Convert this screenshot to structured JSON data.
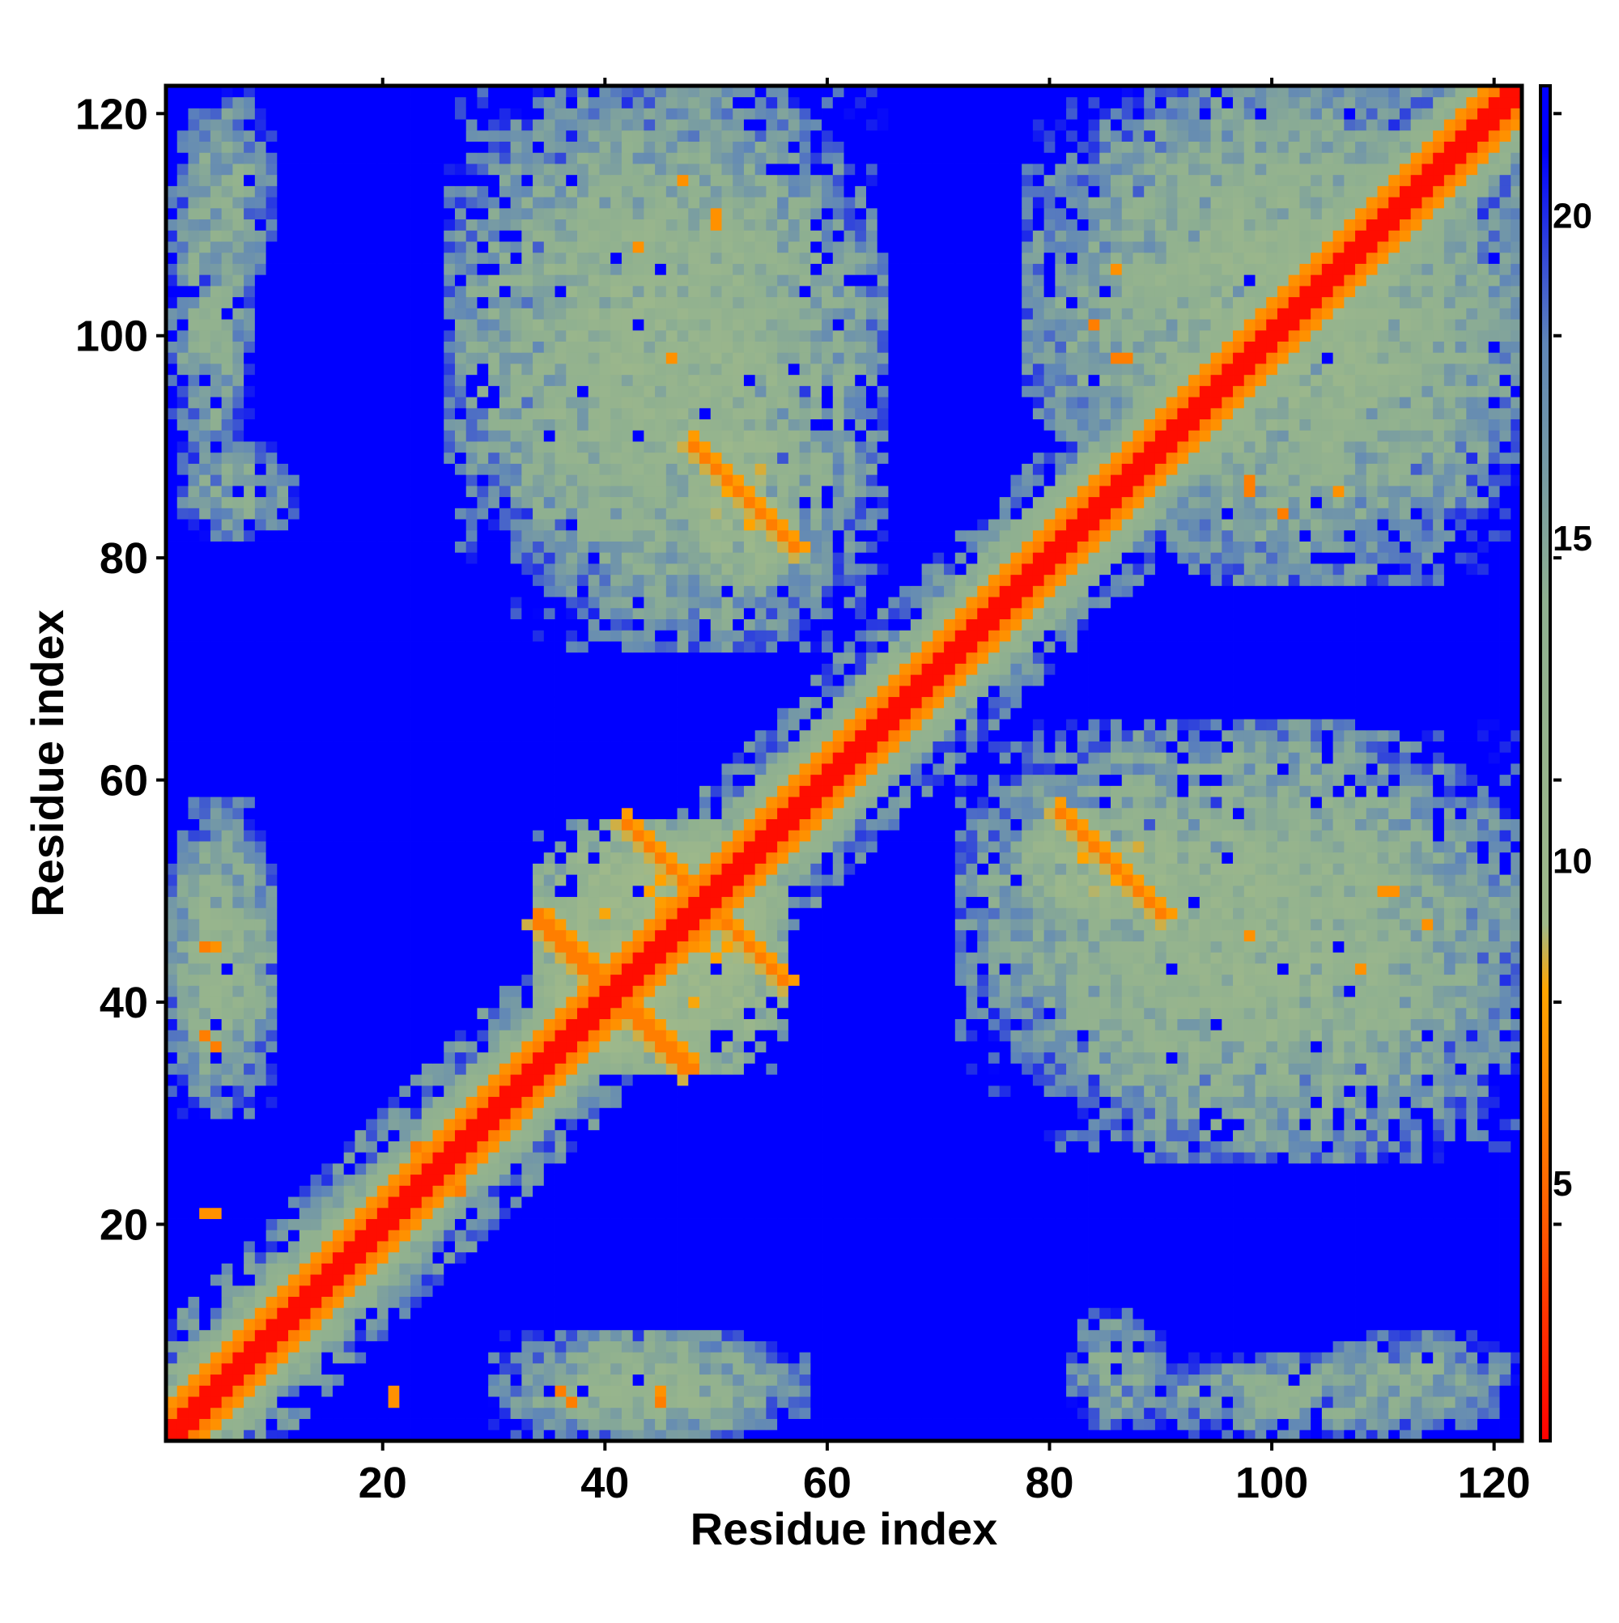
{
  "chart_data": {
    "type": "heatmap",
    "title": "",
    "xlabel": "Residue index",
    "ylabel": "Residue index",
    "xlim": [
      1,
      122
    ],
    "ylim": [
      1,
      122
    ],
    "x_ticks": [
      20,
      40,
      60,
      80,
      100,
      120
    ],
    "y_ticks": [
      20,
      40,
      60,
      80,
      100,
      120
    ],
    "colorbar": {
      "range": [
        1,
        22
      ],
      "ticks": [
        5,
        10,
        15,
        20
      ],
      "stops": [
        {
          "value": 1,
          "color": "#ff0000"
        },
        {
          "value": 5,
          "color": "#ff6a00"
        },
        {
          "value": 8,
          "color": "#ffa500"
        },
        {
          "value": 9,
          "color": "#9fb98a"
        },
        {
          "value": 14,
          "color": "#8fb090"
        },
        {
          "value": 18,
          "color": "#5f86b8"
        },
        {
          "value": 21,
          "color": "#0000ff"
        }
      ]
    },
    "value_meaning": "pairwise residue distance; blue = far (>= 21), red = near",
    "symmetric": true,
    "background_value": 22,
    "diagonal_band": {
      "core_halfwidth": 1.5,
      "orange_halfwidth": 3,
      "green_halfwidth": 6
    },
    "contact_regions": [
      {
        "x": [
          34,
          46
        ],
        "y": [
          34,
          48
        ],
        "level": 12
      },
      {
        "x": [
          40,
          56
        ],
        "y": [
          34,
          56
        ],
        "level": 12
      },
      {
        "x": [
          48,
          57
        ],
        "y": [
          78,
          92
        ],
        "level": 12
      },
      {
        "x": [
          32,
          65
        ],
        "y": [
          72,
          122
        ],
        "level": 15
      },
      {
        "x": [
          78,
          122
        ],
        "y": [
          26,
          58
        ],
        "level": 15
      },
      {
        "x": [
          78,
          122
        ],
        "y": [
          84,
          122
        ],
        "level": 15
      },
      {
        "x": [
          1,
          10
        ],
        "y": [
          30,
          58
        ],
        "level": 16
      },
      {
        "x": [
          1,
          8
        ],
        "y": [
          86,
          120
        ],
        "level": 17
      },
      {
        "x": [
          34,
          55
        ],
        "y": [
          1,
          10
        ],
        "level": 15
      },
      {
        "x": [
          82,
          90
        ],
        "y": [
          2,
          12
        ],
        "level": 17
      },
      {
        "x": [
          104,
          122
        ],
        "y": [
          2,
          10
        ],
        "level": 17
      }
    ],
    "close_contacts": [
      {
        "from": [
          34,
          48
        ],
        "to": [
          47,
          34
        ],
        "value": 6
      },
      {
        "from": [
          42,
          56
        ],
        "to": [
          56,
          42
        ],
        "value": 6
      },
      {
        "from": [
          48,
          90
        ],
        "to": [
          57,
          81
        ],
        "value": 6
      },
      {
        "from": [
          81,
          57
        ],
        "to": [
          90,
          48
        ],
        "value": 6
      }
    ],
    "contact_spots": [
      {
        "x": 4,
        "y": 37,
        "value": 6
      },
      {
        "x": 5,
        "y": 45,
        "value": 7
      },
      {
        "x": 36,
        "y": 5,
        "value": 6
      },
      {
        "x": 45,
        "y": 4,
        "value": 6
      },
      {
        "x": 43,
        "y": 108,
        "value": 7
      },
      {
        "x": 50,
        "y": 111,
        "value": 7
      },
      {
        "x": 46,
        "y": 98,
        "value": 7
      },
      {
        "x": 86,
        "y": 98,
        "value": 6
      },
      {
        "x": 84,
        "y": 101,
        "value": 6
      },
      {
        "x": 98,
        "y": 87,
        "value": 6
      },
      {
        "x": 101,
        "y": 84,
        "value": 6
      },
      {
        "x": 110,
        "y": 50,
        "value": 7
      },
      {
        "x": 114,
        "y": 47,
        "value": 7
      },
      {
        "x": 106,
        "y": 86,
        "value": 7
      },
      {
        "x": 21,
        "y": 4,
        "value": 7
      },
      {
        "x": 5,
        "y": 21,
        "value": 7
      },
      {
        "x": 27,
        "y": 23,
        "value": 6
      },
      {
        "x": 23,
        "y": 27,
        "value": 6
      }
    ]
  }
}
